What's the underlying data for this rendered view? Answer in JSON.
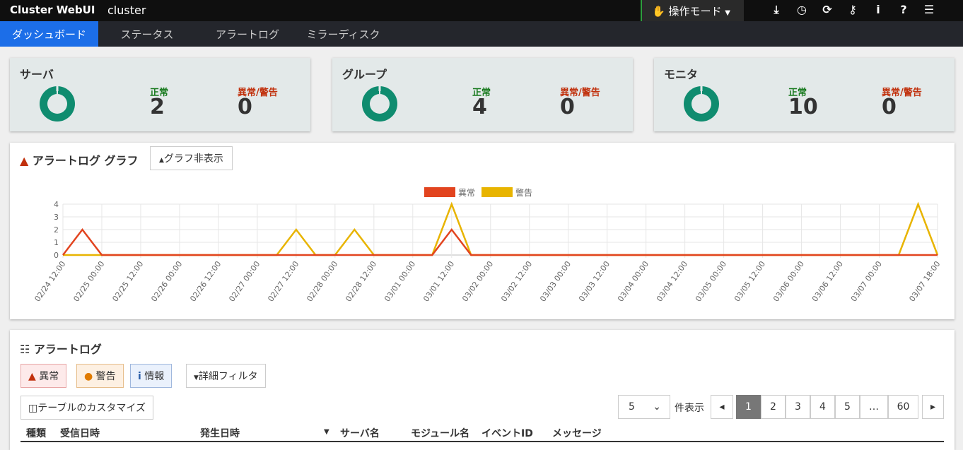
{
  "header": {
    "brand": "Cluster WebUI",
    "cluster": "cluster",
    "mode": "操作モード",
    "icons": [
      "download-icon",
      "clock-icon",
      "refresh-icon",
      "key-icon",
      "info-icon",
      "help-icon",
      "list-icon"
    ]
  },
  "nav": [
    "ダッシュボード",
    "ステータス",
    "アラートログ",
    "ミラーディスク"
  ],
  "cards": [
    {
      "title": "サーバ",
      "ok_label": "正常",
      "ok": "2",
      "ng_label": "異常/警告",
      "ng": "0"
    },
    {
      "title": "グループ",
      "ok_label": "正常",
      "ok": "4",
      "ng_label": "異常/警告",
      "ng": "0"
    },
    {
      "title": "モニタ",
      "ok_label": "正常",
      "ok": "10",
      "ng_label": "異常/警告",
      "ng": "0"
    }
  ],
  "graph": {
    "title": "アラートログ グラフ",
    "hide_button": "グラフ非表示"
  },
  "chart_data": {
    "type": "line",
    "ylim": [
      0,
      4
    ],
    "yticks": [
      0,
      1,
      2,
      3,
      4
    ],
    "grid": true,
    "legend": "top",
    "xticks": [
      "02/24 12:00",
      "02/25 00:00",
      "02/25 12:00",
      "02/26 00:00",
      "02/26 12:00",
      "02/27 00:00",
      "02/27 12:00",
      "02/28 00:00",
      "02/28 12:00",
      "03/01 00:00",
      "03/01 12:00",
      "03/02 00:00",
      "03/02 12:00",
      "03/03 00:00",
      "03/03 12:00",
      "03/04 00:00",
      "03/04 12:00",
      "03/05 00:00",
      "03/05 12:00",
      "03/06 00:00",
      "03/06 12:00",
      "03/07 00:00",
      "03/07 18:00"
    ],
    "x": [
      "02/24 12:00",
      "02/24 18:00",
      "02/25 00:00",
      "02/25 06:00",
      "02/25 12:00",
      "02/25 18:00",
      "02/26 00:00",
      "02/26 06:00",
      "02/26 12:00",
      "02/26 18:00",
      "02/27 00:00",
      "02/27 06:00",
      "02/27 12:00",
      "02/27 18:00",
      "02/28 00:00",
      "02/28 06:00",
      "02/28 12:00",
      "02/28 18:00",
      "03/01 00:00",
      "03/01 06:00",
      "03/01 12:00",
      "03/01 18:00",
      "03/02 00:00",
      "03/02 06:00",
      "03/02 12:00",
      "03/02 18:00",
      "03/03 00:00",
      "03/03 06:00",
      "03/03 12:00",
      "03/03 18:00",
      "03/04 00:00",
      "03/04 06:00",
      "03/04 12:00",
      "03/04 18:00",
      "03/05 00:00",
      "03/05 06:00",
      "03/05 12:00",
      "03/05 18:00",
      "03/06 00:00",
      "03/06 06:00",
      "03/06 12:00",
      "03/06 18:00",
      "03/07 00:00",
      "03/07 06:00",
      "03/07 12:00",
      "03/07 18:00"
    ],
    "series": [
      {
        "name": "異常",
        "color": "#e2441f",
        "values": [
          0,
          2,
          0,
          0,
          0,
          0,
          0,
          0,
          0,
          0,
          0,
          0,
          0,
          0,
          0,
          0,
          0,
          0,
          0,
          0,
          2,
          0,
          0,
          0,
          0,
          0,
          0,
          0,
          0,
          0,
          0,
          0,
          0,
          0,
          0,
          0,
          0,
          0,
          0,
          0,
          0,
          0,
          0,
          0,
          0,
          0
        ]
      },
      {
        "name": "警告",
        "color": "#e8b400",
        "values": [
          0,
          0,
          0,
          0,
          0,
          0,
          0,
          0,
          0,
          0,
          0,
          0,
          2,
          0,
          0,
          2,
          0,
          0,
          0,
          0,
          4,
          0,
          0,
          0,
          0,
          0,
          0,
          0,
          0,
          0,
          0,
          0,
          0,
          0,
          0,
          0,
          0,
          0,
          0,
          0,
          0,
          0,
          0,
          0,
          4,
          0
        ]
      }
    ]
  },
  "alertlog": {
    "title": "アラートログ",
    "filters": [
      "異常",
      "警告",
      "情報"
    ],
    "detail_filter": "詳細フィルタ",
    "customize": "テーブルのカスタマイズ",
    "per_page": "5",
    "per_page_label": "件表示",
    "pages": [
      "1",
      "2",
      "3",
      "4",
      "5",
      "…",
      "60"
    ],
    "columns": [
      "種類",
      "受信日時",
      "発生日時",
      "サーバ名",
      "モジュール名",
      "イベントID",
      "メッセージ"
    ]
  }
}
